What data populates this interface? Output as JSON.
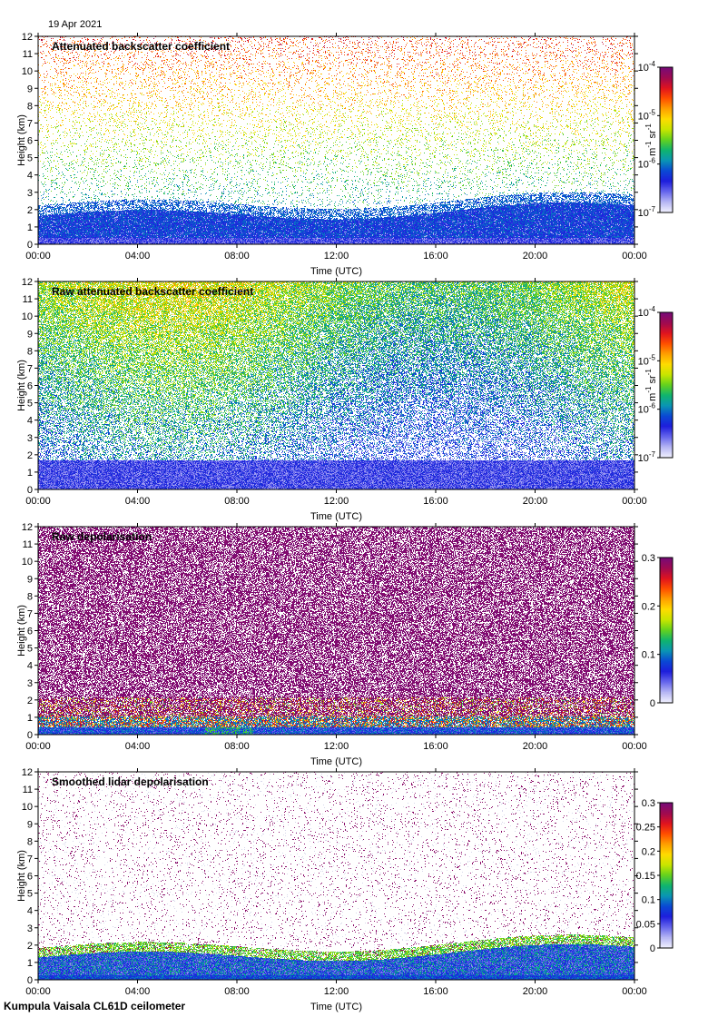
{
  "date_label": "19 Apr 2021",
  "footer_label": "Kumpula Vaisala CL61D ceilometer",
  "colors": {
    "colormap": [
      "#f0f0ff",
      "#b4b4f4",
      "#6464ec",
      "#1e1edc",
      "#0a4ad4",
      "#0a96b4",
      "#10b46e",
      "#64d21e",
      "#c8e600",
      "#ffdc00",
      "#ffa000",
      "#ff5000",
      "#e1141e",
      "#a00a50",
      "#780a78"
    ],
    "axes": "#000000",
    "background": "#ffffff"
  },
  "chart_data": [
    {
      "type": "heatmap",
      "title": "Attenuated backscatter coefficient",
      "xlabel": "Time (UTC)",
      "ylabel": "Height (km)",
      "x_ticks": [
        "00:00",
        "04:00",
        "08:00",
        "12:00",
        "16:00",
        "20:00",
        "00:00"
      ],
      "y_ticks": [
        "0",
        "1",
        "2",
        "3",
        "4",
        "5",
        "6",
        "7",
        "8",
        "9",
        "10",
        "11",
        "12"
      ],
      "ylim": [
        0,
        12
      ],
      "colorbar": {
        "scale": "log",
        "ticks": [
          {
            "base": "10",
            "exp": "-4"
          },
          {
            "base": "10",
            "exp": "-5"
          },
          {
            "base": "10",
            "exp": "-6"
          },
          {
            "base": "10",
            "exp": "-7"
          }
        ],
        "unit": {
          "m": "m",
          "m_exp": "-1",
          "sr": "sr",
          "sr_exp": "-1"
        }
      },
      "pattern": "attenuated"
    },
    {
      "type": "heatmap",
      "title": "Raw attenuated backscatter coefficient",
      "xlabel": "Time (UTC)",
      "ylabel": "Height (km)",
      "x_ticks": [
        "00:00",
        "04:00",
        "08:00",
        "12:00",
        "16:00",
        "20:00",
        "00:00"
      ],
      "y_ticks": [
        "0",
        "1",
        "2",
        "3",
        "4",
        "5",
        "6",
        "7",
        "8",
        "9",
        "10",
        "11",
        "12"
      ],
      "ylim": [
        0,
        12
      ],
      "colorbar": {
        "scale": "log",
        "ticks": [
          {
            "base": "10",
            "exp": "-4"
          },
          {
            "base": "10",
            "exp": "-5"
          },
          {
            "base": "10",
            "exp": "-6"
          },
          {
            "base": "10",
            "exp": "-7"
          }
        ],
        "unit": {
          "m": "m",
          "m_exp": "-1",
          "sr": "sr",
          "sr_exp": "-1"
        }
      },
      "pattern": "raw_backscatter"
    },
    {
      "type": "heatmap",
      "title": "Raw depolarisation",
      "xlabel": "Time (UTC)",
      "ylabel": "Height (km)",
      "x_ticks": [
        "00:00",
        "04:00",
        "08:00",
        "12:00",
        "16:00",
        "20:00",
        "00:00"
      ],
      "y_ticks": [
        "0",
        "1",
        "2",
        "3",
        "4",
        "5",
        "6",
        "7",
        "8",
        "9",
        "10",
        "11",
        "12"
      ],
      "ylim": [
        0,
        12
      ],
      "colorbar": {
        "scale": "linear",
        "range": [
          0,
          0.3
        ],
        "ticks": [
          "0.3",
          "0.2",
          "0.1",
          "0"
        ]
      },
      "pattern": "raw_depol"
    },
    {
      "type": "heatmap",
      "title": "Smoothed lidar depolarisation",
      "xlabel": "Time (UTC)",
      "ylabel": "Height (km)",
      "x_ticks": [
        "00:00",
        "04:00",
        "08:00",
        "12:00",
        "16:00",
        "20:00",
        "00:00"
      ],
      "y_ticks": [
        "0",
        "1",
        "2",
        "3",
        "4",
        "5",
        "6",
        "7",
        "8",
        "9",
        "10",
        "11",
        "12"
      ],
      "ylim": [
        0,
        12
      ],
      "colorbar": {
        "scale": "linear",
        "range": [
          0,
          0.3
        ],
        "ticks": [
          "0.3",
          "0.25",
          "0.2",
          "0.15",
          "0.1",
          "0.05",
          "0"
        ]
      },
      "pattern": "smoothed_depol"
    }
  ]
}
